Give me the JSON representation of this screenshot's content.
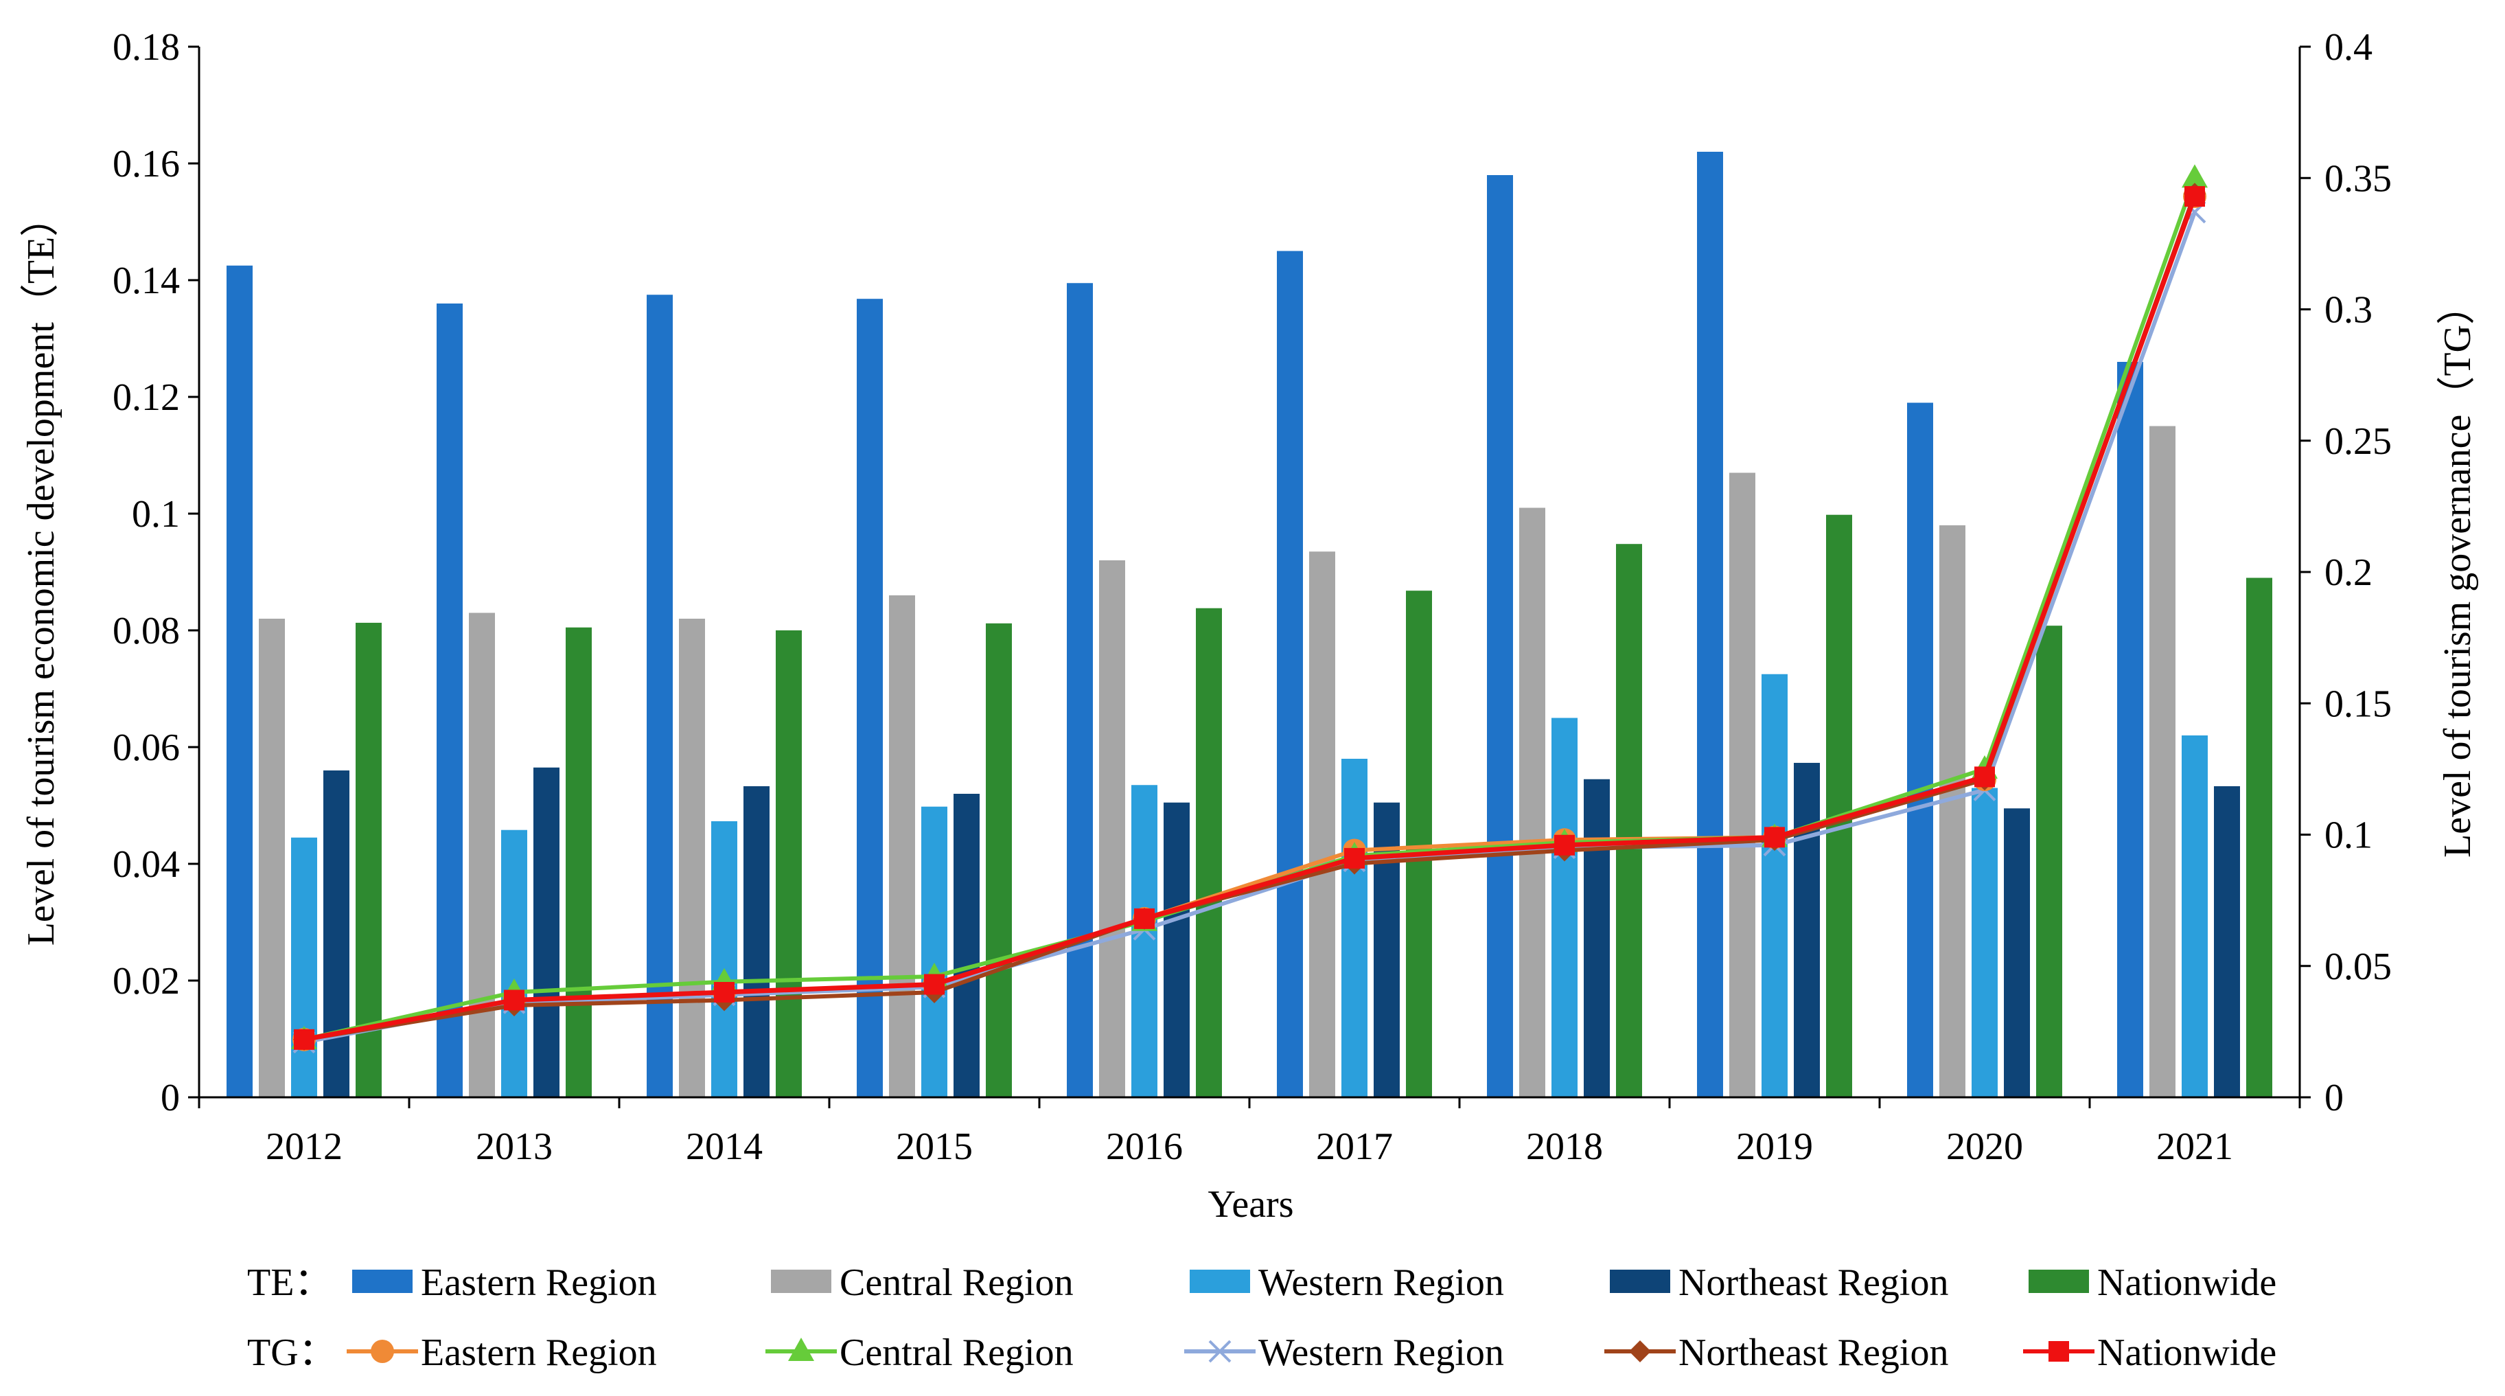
{
  "chart_data": {
    "type": "bar+line",
    "xlabel": "Years",
    "ylabel_left": "Level of tourism economic development（TE）",
    "ylabel_right": "Level of tourism governance（TG）",
    "ylim_left": [
      0,
      0.18
    ],
    "ylim_right": [
      0,
      0.4
    ],
    "yticks_left": [
      "0",
      "0.02",
      "0.04",
      "0.06",
      "0.08",
      "0.1",
      "0.12",
      "0.14",
      "0.16",
      "0.18"
    ],
    "yticks_right": [
      "0",
      "0.05",
      "0.1",
      "0.15",
      "0.2",
      "0.25",
      "0.3",
      "0.35",
      "0.4"
    ],
    "categories": [
      "2012",
      "2013",
      "2014",
      "2015",
      "2016",
      "2017",
      "2018",
      "2019",
      "2020",
      "2021"
    ],
    "legend_group_te": "TE：",
    "legend_group_tg": "TG：",
    "bar_series": [
      {
        "name": "Eastern Region",
        "color": "#1f73c8",
        "values": [
          0.1425,
          0.136,
          0.1375,
          0.1368,
          0.1395,
          0.145,
          0.158,
          0.162,
          0.119,
          0.126
        ]
      },
      {
        "name": "Central Region",
        "color": "#a6a6a6",
        "values": [
          0.082,
          0.083,
          0.082,
          0.086,
          0.092,
          0.0935,
          0.101,
          0.107,
          0.098,
          0.115
        ]
      },
      {
        "name": "Western Region",
        "color": "#2b9fdc",
        "values": [
          0.0445,
          0.0458,
          0.0473,
          0.0498,
          0.0535,
          0.058,
          0.065,
          0.0725,
          0.053,
          0.062
        ]
      },
      {
        "name": "Northeast Region",
        "color": "#0e4477",
        "values": [
          0.056,
          0.0565,
          0.0533,
          0.052,
          0.0505,
          0.0505,
          0.0545,
          0.0573,
          0.0495,
          0.0533
        ]
      },
      {
        "name": "Nationwide",
        "color": "#2e8a30",
        "values": [
          0.0813,
          0.0805,
          0.08,
          0.0812,
          0.0838,
          0.0868,
          0.0948,
          0.0998,
          0.0808,
          0.089
        ]
      }
    ],
    "line_series": [
      {
        "name": "Eastern Region",
        "color": "#f08a36",
        "marker": "circle",
        "values": [
          0.022,
          0.037,
          0.04,
          0.043,
          0.068,
          0.094,
          0.098,
          0.099,
          0.121,
          0.343
        ]
      },
      {
        "name": "Central Region",
        "color": "#66cc3a",
        "marker": "triangle",
        "values": [
          0.022,
          0.04,
          0.044,
          0.046,
          0.067,
          0.092,
          0.097,
          0.099,
          0.125,
          0.35
        ]
      },
      {
        "name": "Western Region",
        "color": "#8ea9dc",
        "marker": "x",
        "values": [
          0.021,
          0.036,
          0.039,
          0.042,
          0.064,
          0.09,
          0.095,
          0.096,
          0.117,
          0.337
        ]
      },
      {
        "name": "Northeast Region",
        "color": "#a0431a",
        "marker": "diamond",
        "values": [
          0.022,
          0.035,
          0.037,
          0.04,
          0.068,
          0.089,
          0.094,
          0.098,
          0.121,
          0.344
        ]
      },
      {
        "name": "Nationwide",
        "color": "#ee1111",
        "marker": "square",
        "values": [
          0.022,
          0.037,
          0.04,
          0.043,
          0.068,
          0.091,
          0.096,
          0.099,
          0.122,
          0.343
        ]
      }
    ]
  }
}
